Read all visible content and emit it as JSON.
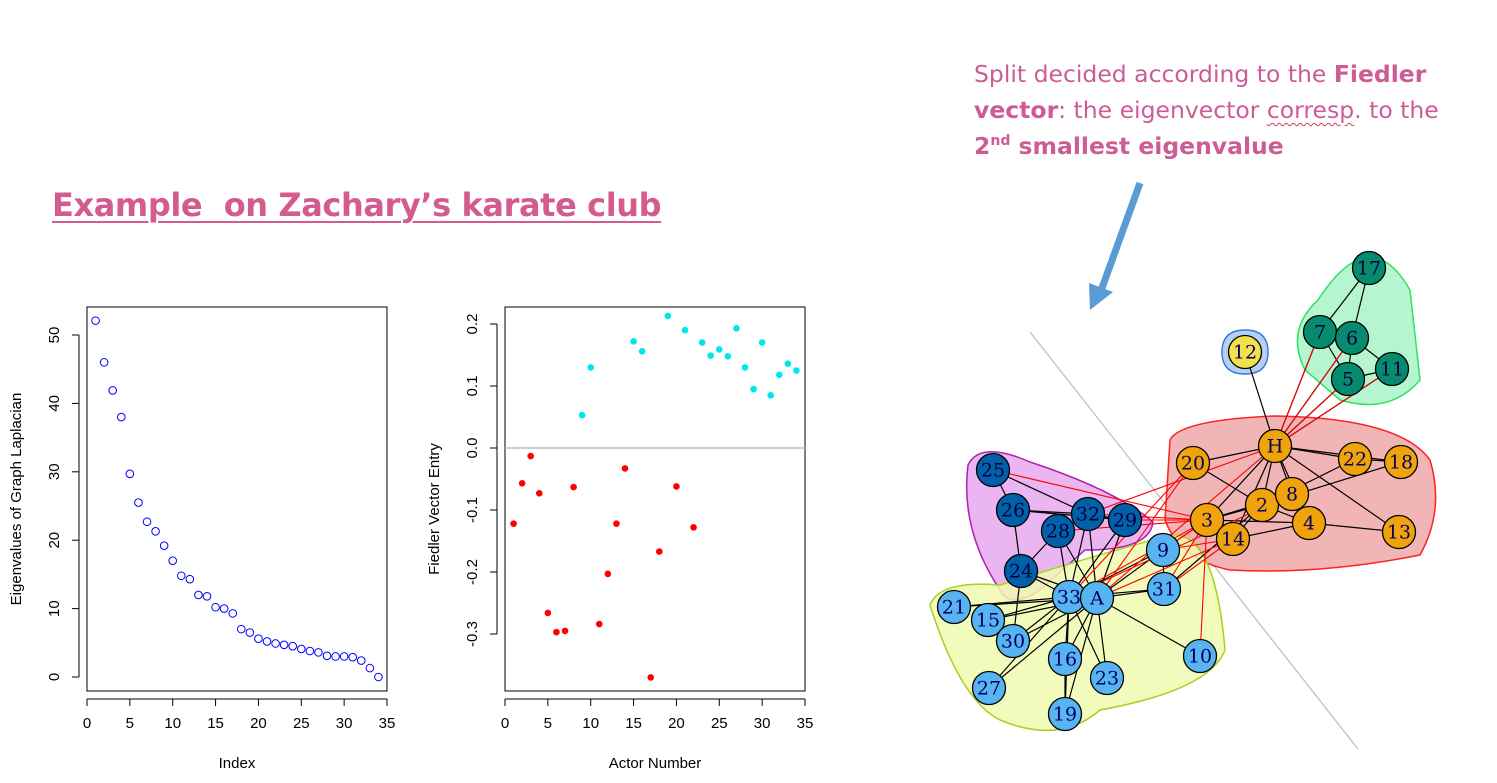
{
  "slide": {
    "title": "Example  on Zachary’s karate club",
    "callout": {
      "part1": "Split decided according to the ",
      "bold1": "Fiedler vector",
      "part2": ": the eigenvector ",
      "squiggle_word": "corresp",
      "part3": ". to the ",
      "bold2_num": "2",
      "bold2_sup": "nd",
      "bold2_rest": " smallest eigenvalue"
    },
    "colors": {
      "title": "#d45b8e",
      "callout": "#cd5c96",
      "arrow": "#5b9bd5"
    }
  },
  "chart_data": [
    {
      "type": "scatter",
      "title": "",
      "xlabel": "Index",
      "ylabel": "Eigenvalues of Graph Laplacian",
      "xlim": [
        0,
        35
      ],
      "ylim": [
        0,
        52
      ],
      "xticks": [
        0,
        5,
        10,
        15,
        20,
        25,
        30,
        35
      ],
      "yticks": [
        0,
        10,
        20,
        30,
        40,
        50
      ],
      "marker": "open-circle",
      "color": "#0000ff",
      "x": [
        1,
        2,
        3,
        4,
        5,
        6,
        7,
        8,
        9,
        10,
        11,
        12,
        13,
        14,
        15,
        16,
        17,
        18,
        19,
        20,
        21,
        22,
        23,
        24,
        25,
        26,
        27,
        28,
        29,
        30,
        31,
        32,
        33,
        34
      ],
      "y": [
        52.1,
        46.0,
        41.9,
        38.0,
        29.7,
        25.5,
        22.7,
        21.3,
        19.2,
        17.0,
        14.8,
        14.3,
        12.0,
        11.8,
        10.2,
        10.0,
        9.3,
        7.0,
        6.5,
        5.6,
        5.2,
        4.9,
        4.7,
        4.5,
        4.1,
        3.8,
        3.6,
        3.1,
        3.0,
        3.0,
        2.9,
        2.4,
        1.3,
        0.0
      ]
    },
    {
      "type": "scatter",
      "title": "",
      "xlabel": "Actor Number",
      "ylabel": "Fiedler Vector Entry",
      "xlim": [
        0,
        35
      ],
      "ylim": [
        -0.37,
        0.21
      ],
      "xticks": [
        0,
        5,
        10,
        15,
        20,
        25,
        30,
        35
      ],
      "yticks": [
        -0.3,
        -0.2,
        -0.1,
        0.0,
        0.1,
        0.2
      ],
      "ytick_labels": [
        "-0.3",
        "-0.2",
        "-0.1",
        "0.0",
        "0.1",
        "0.2"
      ],
      "hline": 0,
      "marker": "filled-dot",
      "series": [
        {
          "color": "#ff0000",
          "x": [
            1,
            2,
            3,
            4,
            5,
            6,
            7,
            8,
            11,
            12,
            13,
            14,
            17,
            18,
            20,
            22
          ],
          "y": [
            -0.122,
            -0.057,
            -0.013,
            -0.073,
            -0.266,
            -0.297,
            -0.295,
            -0.063,
            -0.284,
            -0.203,
            -0.122,
            -0.033,
            -0.37,
            -0.167,
            -0.062,
            -0.128
          ]
        },
        {
          "color": "#00e5ee",
          "x": [
            9,
            10,
            15,
            16,
            19,
            21,
            23,
            24,
            25,
            26,
            27,
            28,
            29,
            30,
            31,
            32,
            33,
            34
          ],
          "y": [
            0.053,
            0.13,
            0.172,
            0.156,
            0.213,
            0.19,
            0.17,
            0.149,
            0.159,
            0.148,
            0.193,
            0.13,
            0.095,
            0.17,
            0.085,
            0.118,
            0.136,
            0.125
          ]
        }
      ]
    }
  ],
  "network": {
    "nodes": [
      {
        "id": "17",
        "group": "green"
      },
      {
        "id": "7",
        "group": "green"
      },
      {
        "id": "6",
        "group": "green"
      },
      {
        "id": "5",
        "group": "green"
      },
      {
        "id": "11",
        "group": "green"
      },
      {
        "id": "12",
        "group": "yellow"
      },
      {
        "id": "H",
        "group": "orange"
      },
      {
        "id": "20",
        "group": "orange"
      },
      {
        "id": "22",
        "group": "orange"
      },
      {
        "id": "18",
        "group": "orange"
      },
      {
        "id": "2",
        "group": "orange"
      },
      {
        "id": "8",
        "group": "orange"
      },
      {
        "id": "3",
        "group": "orange"
      },
      {
        "id": "4",
        "group": "orange"
      },
      {
        "id": "14",
        "group": "orange"
      },
      {
        "id": "13",
        "group": "orange"
      },
      {
        "id": "25",
        "group": "darkblue"
      },
      {
        "id": "26",
        "group": "darkblue"
      },
      {
        "id": "28",
        "group": "darkblue"
      },
      {
        "id": "32",
        "group": "darkblue"
      },
      {
        "id": "29",
        "group": "darkblue"
      },
      {
        "id": "24",
        "group": "darkblue"
      },
      {
        "id": "9",
        "group": "lightblue"
      },
      {
        "id": "31",
        "group": "lightblue"
      },
      {
        "id": "33",
        "group": "lightblue"
      },
      {
        "id": "A",
        "group": "lightblue"
      },
      {
        "id": "21",
        "group": "lightblue"
      },
      {
        "id": "15",
        "group": "lightblue"
      },
      {
        "id": "30",
        "group": "lightblue"
      },
      {
        "id": "16",
        "group": "lightblue"
      },
      {
        "id": "23",
        "group": "lightblue"
      },
      {
        "id": "27",
        "group": "lightblue"
      },
      {
        "id": "19",
        "group": "lightblue"
      },
      {
        "id": "10",
        "group": "lightblue"
      }
    ],
    "edges": [
      [
        "17",
        "7"
      ],
      [
        "17",
        "6"
      ],
      [
        "7",
        "6"
      ],
      [
        "7",
        "5"
      ],
      [
        "6",
        "5"
      ],
      [
        "6",
        "11"
      ],
      [
        "5",
        "11"
      ],
      [
        "H",
        "7"
      ],
      [
        "H",
        "6"
      ],
      [
        "H",
        "5"
      ],
      [
        "H",
        "11"
      ],
      [
        "H",
        "12"
      ],
      [
        "H",
        "20"
      ],
      [
        "H",
        "22"
      ],
      [
        "H",
        "18"
      ],
      [
        "H",
        "2"
      ],
      [
        "H",
        "8"
      ],
      [
        "H",
        "3"
      ],
      [
        "H",
        "4"
      ],
      [
        "H",
        "14"
      ],
      [
        "H",
        "13"
      ],
      [
        "2",
        "8"
      ],
      [
        "2",
        "3"
      ],
      [
        "2",
        "4"
      ],
      [
        "2",
        "14"
      ],
      [
        "2",
        "22"
      ],
      [
        "2",
        "18"
      ],
      [
        "2",
        "20"
      ],
      [
        "8",
        "3"
      ],
      [
        "8",
        "4"
      ],
      [
        "3",
        "4"
      ],
      [
        "3",
        "14"
      ],
      [
        "4",
        "14"
      ],
      [
        "4",
        "13"
      ],
      [
        "22",
        "18"
      ],
      [
        "2",
        "31"
      ],
      [
        "25",
        "26"
      ],
      [
        "25",
        "32"
      ],
      [
        "26",
        "24"
      ],
      [
        "26",
        "29"
      ],
      [
        "28",
        "24"
      ],
      [
        "28",
        "A"
      ],
      [
        "32",
        "29"
      ],
      [
        "32",
        "33"
      ],
      [
        "32",
        "A"
      ],
      [
        "24",
        "33"
      ],
      [
        "24",
        "30"
      ],
      [
        "24",
        "A"
      ],
      [
        "29",
        "A"
      ],
      [
        "29",
        "33"
      ],
      [
        "28",
        "33"
      ],
      [
        "26",
        "32"
      ],
      [
        "33",
        "A"
      ],
      [
        "33",
        "9"
      ],
      [
        "33",
        "31"
      ],
      [
        "33",
        "21"
      ],
      [
        "33",
        "15"
      ],
      [
        "33",
        "30"
      ],
      [
        "33",
        "16"
      ],
      [
        "33",
        "23"
      ],
      [
        "33",
        "27"
      ],
      [
        "33",
        "19"
      ],
      [
        "A",
        "9"
      ],
      [
        "A",
        "31"
      ],
      [
        "A",
        "10"
      ],
      [
        "A",
        "21"
      ],
      [
        "A",
        "15"
      ],
      [
        "A",
        "16"
      ],
      [
        "A",
        "23"
      ],
      [
        "A",
        "27"
      ],
      [
        "A",
        "19"
      ],
      [
        "A",
        "30"
      ],
      [
        "9",
        "31"
      ],
      [
        "16",
        "19"
      ]
    ],
    "cross_edges": [
      [
        "3",
        "9"
      ],
      [
        "3",
        "29"
      ],
      [
        "3",
        "33"
      ],
      [
        "3",
        "32"
      ],
      [
        "3",
        "28"
      ],
      [
        "14",
        "A"
      ],
      [
        "20",
        "A"
      ],
      [
        "H",
        "32"
      ],
      [
        "H",
        "A"
      ],
      [
        "9",
        "3"
      ],
      [
        "14",
        "31"
      ],
      [
        "3",
        "10"
      ],
      [
        "3",
        "31"
      ],
      [
        "8",
        "33"
      ],
      [
        "20",
        "33"
      ],
      [
        "3",
        "25"
      ],
      [
        "14",
        "9"
      ]
    ],
    "colors": {
      "green": "#078a6e",
      "yellow": "#f2e14c",
      "orange": "#f0a30a",
      "darkblue": "#0060a8",
      "lightblue": "#57b4f0",
      "hull_green": "#a8f5c8",
      "hull_green_stroke": "#30e060",
      "hull_pink": "#f0a8a8",
      "hull_pink_stroke": "#ff2020",
      "hull_purple": "#e8a8f0",
      "hull_purple_stroke": "#b020b0",
      "hull_lime": "#f0fab0",
      "hull_lime_stroke": "#a8d020",
      "hull_blue": "#a8c8f0",
      "hull_blue_stroke": "#3a7ad8"
    }
  }
}
